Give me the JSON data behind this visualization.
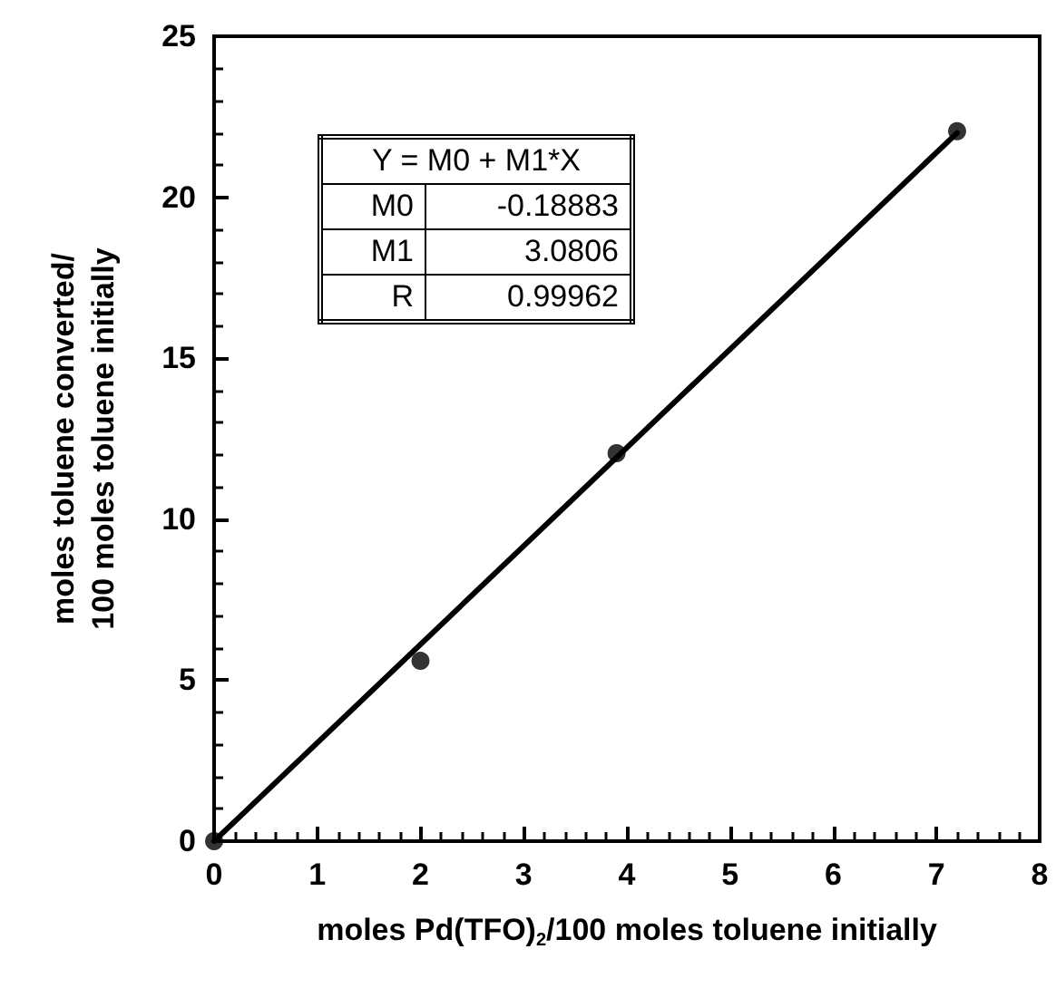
{
  "chart_data": {
    "type": "scatter",
    "xlabel": "moles Pd(TFO)$_{2}$/100 moles toluene initially",
    "ylabel": "moles toluene converted/\n100 moles toluene initially",
    "xlim": [
      0,
      8
    ],
    "xticks": [
      0,
      1,
      2,
      3,
      4,
      5,
      6,
      7,
      8
    ],
    "ylim": [
      0,
      25
    ],
    "yticks": [
      0,
      5,
      10,
      15,
      20,
      25
    ],
    "grid": false,
    "marker": "circle",
    "series": [
      {
        "color": "#000000",
        "x": [
          0,
          2,
          3.9,
          7.2
        ],
        "values": [
          0,
          5.6,
          12.05,
          22.05
        ]
      },
      {
        "type": "line",
        "color": "#000000",
        "x": [
          0,
          7.2
        ],
        "values": [
          0,
          22.0
        ],
        "marker": "none",
        "line_style": "solid"
      }
    ],
    "annotations": [
      "Y = M0 + M1*X",
      "M0",
      "-0.18883",
      "M1",
      "3.0806",
      "R",
      "0.99962"
    ]
  }
}
